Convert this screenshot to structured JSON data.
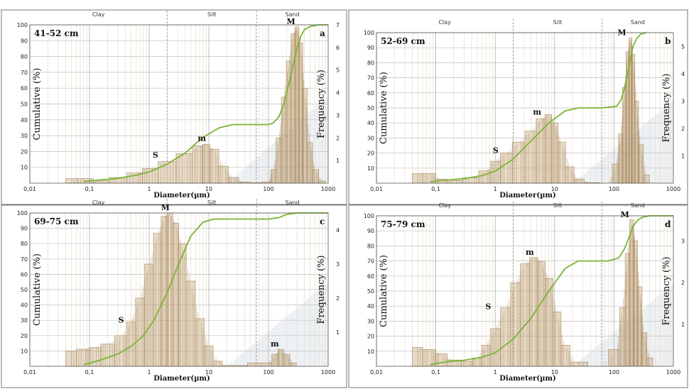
{
  "chart_data": [
    {
      "type": "bar",
      "panel_letter": "a",
      "depth_label": "41-52 cm",
      "xlabel": "Diameter(µm)",
      "ylabel_left": "Cumulative (%)",
      "ylabel_right": "Frequency (%)",
      "x_scale": "log",
      "xlim": [
        0.01,
        1000
      ],
      "ylim_left": [
        0,
        100
      ],
      "ylim_right": [
        0,
        7
      ],
      "x_ticks": [
        "0,01",
        "0,1",
        "1",
        "10",
        "100",
        "1000"
      ],
      "y_ticks_left": [
        "10",
        "20",
        "30",
        "40",
        "50",
        "60",
        "70",
        "80",
        "90",
        "100"
      ],
      "y_ticks_right": [
        "1",
        "2",
        "3",
        "4",
        "5",
        "6",
        "7"
      ],
      "zones": [
        "Clay",
        "Silt",
        "Sand"
      ],
      "zone_bounds": [
        2,
        63
      ],
      "peak_labels": [
        {
          "label": "S",
          "x": 1.5,
          "y": 1.0
        },
        {
          "label": "m",
          "x": 9,
          "y": 1.75
        },
        {
          "label": "M",
          "x": 280,
          "y": 6.9
        }
      ],
      "frequency": {
        "x": [
          0.045,
          0.09,
          0.15,
          0.3,
          0.6,
          1,
          2,
          4,
          7,
          9,
          12,
          18,
          25,
          40,
          60,
          100,
          120,
          150,
          180,
          220,
          260,
          300,
          350,
          400,
          500,
          600,
          800
        ],
        "y": [
          0.2,
          0.2,
          0.1,
          0.25,
          0.45,
          0.65,
          0.95,
          1.3,
          1.65,
          1.72,
          1.5,
          0.75,
          0.25,
          0.05,
          0.02,
          0.05,
          0.6,
          2.0,
          3.8,
          5.4,
          6.6,
          6.9,
          6.2,
          4.2,
          1.8,
          0.6,
          0.1
        ]
      },
      "cumulative": {
        "x": [
          0.08,
          0.15,
          0.3,
          0.6,
          1,
          2,
          4,
          8,
          15,
          25,
          50,
          100,
          120,
          150,
          180,
          220,
          260,
          300,
          350,
          400,
          500,
          700,
          1000
        ],
        "y": [
          1,
          2,
          3,
          5,
          7,
          12,
          19,
          29,
          35,
          37,
          37,
          37,
          38,
          42,
          50,
          63,
          75,
          85,
          93,
          97,
          99,
          100,
          100
        ]
      }
    },
    {
      "type": "bar",
      "panel_letter": "b",
      "depth_label": "52-69 cm",
      "xlabel": "Diameter(µm)",
      "ylabel_left": "Cumulative (%)",
      "ylabel_right": "Frequency (%)",
      "x_scale": "log",
      "xlim": [
        0.01,
        1000
      ],
      "ylim_left": [
        0,
        100
      ],
      "ylim_right": [
        0,
        5.5
      ],
      "x_ticks": [
        "0,01",
        "0,1",
        "1",
        "10",
        "100",
        "1000"
      ],
      "y_ticks_left": [
        "10",
        "20",
        "30",
        "40",
        "50",
        "60",
        "70",
        "80",
        "90",
        "100"
      ],
      "y_ticks_right": [
        "1",
        "2",
        "3",
        "4",
        "5"
      ],
      "zones": [
        "Clay",
        "Silt",
        "Sand"
      ],
      "zone_bounds": [
        2,
        63
      ],
      "peak_labels": [
        {
          "label": "S",
          "x": 1.2,
          "y": 1.0
        },
        {
          "label": "m",
          "x": 6,
          "y": 2.4
        },
        {
          "label": "M",
          "x": 160,
          "y": 5.3
        }
      ],
      "frequency": {
        "x": [
          0.045,
          0.08,
          0.12,
          0.2,
          0.4,
          0.7,
          1,
          1.5,
          2.5,
          4,
          6,
          8,
          10,
          13,
          18,
          25,
          40,
          80,
          110,
          130,
          150,
          170,
          190,
          210,
          240,
          280,
          350
        ],
        "y": [
          0.35,
          0.35,
          0.15,
          0.1,
          0.2,
          0.45,
          0.8,
          1.1,
          1.5,
          1.9,
          2.35,
          2.5,
          2.2,
          1.5,
          0.6,
          0.15,
          0.02,
          0.0,
          0.7,
          1.8,
          3.5,
          4.8,
          5.3,
          4.7,
          3.0,
          1.4,
          0.3
        ]
      },
      "cumulative": {
        "x": [
          0.08,
          0.15,
          0.3,
          0.6,
          1,
          2,
          4,
          8,
          15,
          25,
          60,
          110,
          130,
          150,
          170,
          190,
          210,
          240,
          280,
          350
        ],
        "y": [
          1,
          2,
          3,
          5,
          8,
          16,
          28,
          40,
          48,
          50,
          50,
          51,
          55,
          63,
          73,
          83,
          91,
          96,
          99,
          100
        ]
      }
    },
    {
      "type": "bar",
      "panel_letter": "c",
      "depth_label": "69-75 cm",
      "xlabel": "Diameter(µm)",
      "ylabel_left": "Cumulative (%)",
      "ylabel_right": "Frequency (%)",
      "x_scale": "log",
      "xlim": [
        0.01,
        1000
      ],
      "ylim_left": [
        0,
        100
      ],
      "ylim_right": [
        0,
        4.5
      ],
      "x_ticks": [
        "0,01",
        "0,1",
        "1",
        "10",
        "100",
        "1000"
      ],
      "y_ticks_left": [
        "10",
        "20",
        "30",
        "40",
        "50",
        "60",
        "70",
        "80",
        "90",
        "100"
      ],
      "y_ticks_right": [
        "1",
        "2",
        "3",
        "4"
      ],
      "zones": [
        "Clay",
        "Silt",
        "Sand"
      ],
      "zone_bounds": [
        2,
        63
      ],
      "peak_labels": [
        {
          "label": "S",
          "x": 0.4,
          "y": 1.2
        },
        {
          "label": "M",
          "x": 2.2,
          "y": 4.5
        },
        {
          "label": "m",
          "x": 150,
          "y": 0.5
        }
      ],
      "frequency": {
        "x": [
          0.045,
          0.08,
          0.12,
          0.2,
          0.35,
          0.5,
          0.7,
          1,
          1.4,
          1.8,
          2.2,
          2.8,
          3.5,
          5,
          7,
          10,
          14,
          20,
          100,
          130,
          160,
          200,
          260
        ],
        "y": [
          0.45,
          0.5,
          0.55,
          0.65,
          0.9,
          1.3,
          2.0,
          3.0,
          3.9,
          4.4,
          4.5,
          4.2,
          3.6,
          2.5,
          1.4,
          0.6,
          0.15,
          0.02,
          0.1,
          0.35,
          0.5,
          0.35,
          0.1
        ]
      },
      "cumulative": {
        "x": [
          0.08,
          0.15,
          0.3,
          0.5,
          0.8,
          1.2,
          2,
          3,
          5,
          8,
          12,
          20,
          100,
          150,
          200,
          300,
          1000
        ],
        "y": [
          1,
          4,
          8,
          13,
          20,
          30,
          48,
          65,
          85,
          94,
          96,
          96,
          96,
          97,
          99,
          100,
          100
        ]
      }
    },
    {
      "type": "bar",
      "panel_letter": "d",
      "depth_label": "75-79 cm",
      "xlabel": "Diameter(µm)",
      "ylabel_left": "Cumulative (%)",
      "ylabel_right": "Frequency (%)",
      "x_scale": "log",
      "xlim": [
        0.01,
        1000
      ],
      "ylim_left": [
        0,
        100
      ],
      "ylim_right": [
        0,
        3.6
      ],
      "x_ticks": [
        "0,01",
        "0,1",
        "1",
        "10",
        "100",
        "1000"
      ],
      "y_ticks_left": [
        "10",
        "20",
        "30",
        "40",
        "50",
        "60",
        "70",
        "80",
        "90",
        "100"
      ],
      "y_ticks_right": [
        "1",
        "2",
        "3"
      ],
      "zones": [
        "Clay",
        "Silt",
        "Sand"
      ],
      "zone_bounds": [
        2,
        63
      ],
      "peak_labels": [
        {
          "label": "S",
          "x": 0.9,
          "y": 1.3
        },
        {
          "label": "m",
          "x": 4.5,
          "y": 2.6
        },
        {
          "label": "M",
          "x": 180,
          "y": 3.5
        }
      ],
      "frequency": {
        "x": [
          0.045,
          0.08,
          0.12,
          0.2,
          0.35,
          0.5,
          0.7,
          1,
          1.5,
          2.2,
          3.2,
          4.5,
          6,
          8,
          11,
          15,
          22,
          60,
          110,
          140,
          170,
          200,
          230,
          270,
          320,
          400
        ],
        "y": [
          0.45,
          0.4,
          0.3,
          0.15,
          0.12,
          0.2,
          0.5,
          0.9,
          1.4,
          2.0,
          2.45,
          2.6,
          2.5,
          2.1,
          1.3,
          0.5,
          0.1,
          0.0,
          0.4,
          1.4,
          2.7,
          3.5,
          3.0,
          1.9,
          0.8,
          0.2
        ]
      },
      "cumulative": {
        "x": [
          0.08,
          0.15,
          0.3,
          0.6,
          1,
          2,
          4,
          8,
          15,
          25,
          80,
          120,
          150,
          180,
          210,
          250,
          300,
          400,
          1000
        ],
        "y": [
          1,
          3,
          4,
          6,
          9,
          18,
          32,
          50,
          65,
          70,
          70,
          72,
          78,
          86,
          93,
          97,
          99,
          100,
          100
        ]
      }
    }
  ],
  "colors": {
    "bars": "#c9ad85",
    "bar_edge": "#a8875a",
    "cumulative": "#7ab532",
    "gridline": "#bfbfbf",
    "zone_line": "#9a9a9a",
    "plot_bg": "#ffffff",
    "shade": "#e9eef2",
    "frame": "#555555"
  }
}
